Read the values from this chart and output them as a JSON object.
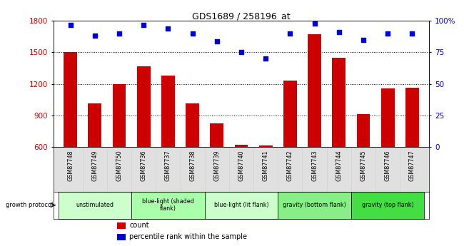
{
  "title": "GDS1689 / 258196_at",
  "samples": [
    "GSM87748",
    "GSM87749",
    "GSM87750",
    "GSM87736",
    "GSM87737",
    "GSM87738",
    "GSM87739",
    "GSM87740",
    "GSM87741",
    "GSM87742",
    "GSM87743",
    "GSM87744",
    "GSM87745",
    "GSM87746",
    "GSM87747"
  ],
  "counts": [
    1500,
    1010,
    1200,
    1370,
    1280,
    1010,
    820,
    620,
    615,
    1230,
    1670,
    1450,
    910,
    1155,
    1165
  ],
  "percentiles": [
    97,
    88,
    90,
    97,
    94,
    90,
    84,
    75,
    70,
    90,
    98,
    91,
    85,
    90,
    90
  ],
  "groups": [
    {
      "label": "unstimulated",
      "start": 0,
      "end": 2,
      "color": "#ccffcc"
    },
    {
      "label": "blue-light (shaded\nflank)",
      "start": 3,
      "end": 5,
      "color": "#aaffaa"
    },
    {
      "label": "blue-light (lit flank)",
      "start": 6,
      "end": 8,
      "color": "#ccffcc"
    },
    {
      "label": "gravity (bottom flank)",
      "start": 9,
      "end": 11,
      "color": "#88ee88"
    },
    {
      "label": "gravity (top flank)",
      "start": 12,
      "end": 14,
      "color": "#44dd44"
    }
  ],
  "ylim_left": [
    600,
    1800
  ],
  "ylim_right": [
    0,
    100
  ],
  "yticks_left": [
    600,
    900,
    1200,
    1500,
    1800
  ],
  "yticks_right": [
    0,
    25,
    50,
    75,
    100
  ],
  "bar_color": "#cc0000",
  "dot_color": "#0000cc",
  "bar_bottom": 600,
  "bg_color": "#e0e0e0"
}
